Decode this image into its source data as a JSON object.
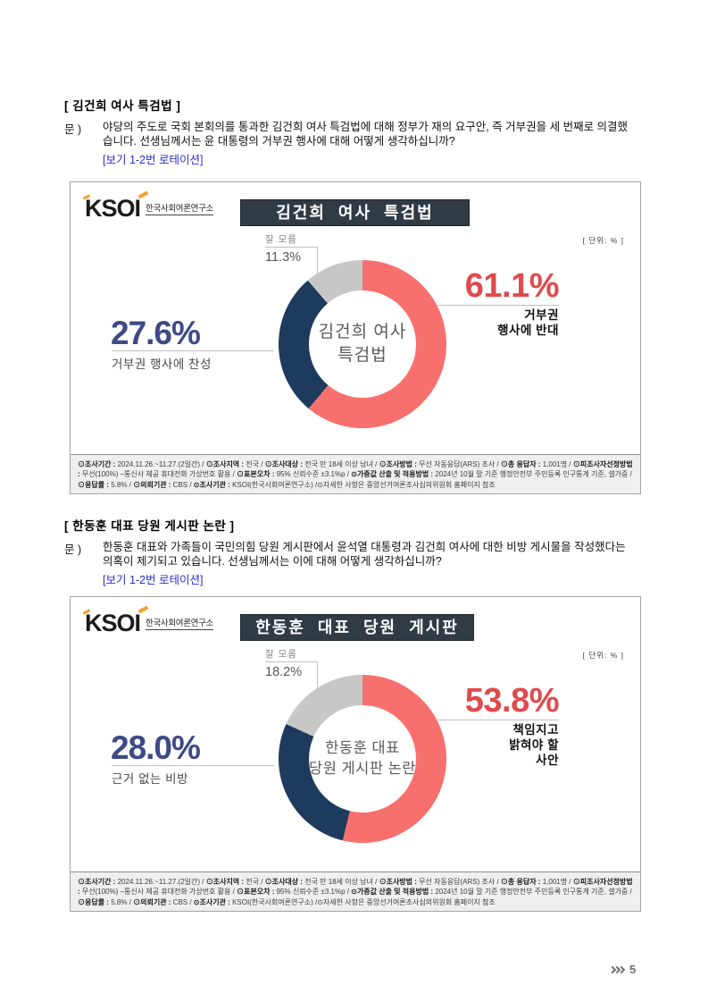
{
  "page": {
    "number": "5"
  },
  "logo": {
    "wordmark": "KSOI",
    "org": "한국사회여론연구소"
  },
  "sections": [
    {
      "heading": "[ 김건희 여사 특검법 ]",
      "q_label": "문 )",
      "question": "야당의 주도로 국회 본회의를 통과한 김건희 여사 특검법에 대해 정부가 재의 요구안, 즉 거부권을 세 번째로 의결했습니다. 선생님께서는 윤 대통령의 거부권 행사에 대해 어떻게 생각하십니까?",
      "rotation_note": "[보기 1-2번 로테이션]"
    },
    {
      "heading": "[ 한동훈 대표 당원 게시판 논란 ]",
      "q_label": "문 )",
      "question": "한동훈 대표와 가족들이 국민의힘 당원 게시판에서 윤석열 대통령과 김건희 여사에 대한 비방 게시물을 작성했다는 의혹이 제기되고 있습니다. 선생님께서는 이에 대해 어떻게 생각하십니까?",
      "rotation_note": "[보기 1-2번 로테이션]"
    }
  ],
  "chart_data": [
    {
      "type": "pie",
      "title": "김건희 여사 특검법",
      "unit_note": "[ 단위: % ]",
      "center_lines": [
        "김건희 여사",
        "특검법"
      ],
      "slices": [
        {
          "label": "거부권 행사에 반대",
          "value": 61.1,
          "color": "#F8706E"
        },
        {
          "label": "거부권 행사에 찬성",
          "value": 27.6,
          "color": "#1E3A5C"
        },
        {
          "label": "잘 모름",
          "value": 11.3,
          "color": "#C7C7C7"
        }
      ],
      "callouts": {
        "top": {
          "label": "잘 모름",
          "pct": "11.3%"
        },
        "left": {
          "pct": "27.6%",
          "label": "거부권 행사에 찬성"
        },
        "right": {
          "pct": "61.1%",
          "lines": [
            "거부권",
            "행사에 반대"
          ]
        }
      }
    },
    {
      "type": "pie",
      "title": "한동훈 대표 당원 게시판 논란",
      "unit_note": "[ 단위: % ]",
      "center_lines": [
        "한동훈 대표",
        "당원 게시판 논란"
      ],
      "slices": [
        {
          "label": "책임지고 밝혀야 할 사안",
          "value": 53.8,
          "color": "#F8706E"
        },
        {
          "label": "근거 없는 비방",
          "value": 28.0,
          "color": "#1E3A5C"
        },
        {
          "label": "잘 모름",
          "value": 18.2,
          "color": "#C7C7C7"
        }
      ],
      "callouts": {
        "top": {
          "label": "잘 모름",
          "pct": "18.2%"
        },
        "left": {
          "pct": "28.0%",
          "label": "근거 없는 비방"
        },
        "right": {
          "pct": "53.8%",
          "lines": [
            "책임지고",
            "밝혀야 할",
            "사안"
          ]
        }
      }
    }
  ],
  "survey_footnote_segments": [
    {
      "b": 1,
      "t": "⊙조사기간 : "
    },
    {
      "b": 0,
      "t": "2024.11.26.~11.27.(2일간)   / "
    },
    {
      "b": 1,
      "t": "⊙조사지역 : "
    },
    {
      "b": 0,
      "t": "전국 / "
    },
    {
      "b": 1,
      "t": "⊙조사대상 : "
    },
    {
      "b": 0,
      "t": "전국 만 18세 이상 남녀 / "
    },
    {
      "b": 1,
      "t": "⊙조사방법 : "
    },
    {
      "b": 0,
      "t": "무선 자동응답(ARS) 조사 / "
    },
    {
      "b": 1,
      "t": "⊙총 응답자 : "
    },
    {
      "b": 0,
      "t": "1,001명 / "
    },
    {
      "b": 1,
      "t": "⊙피조사자선정방법 : "
    },
    {
      "b": 0,
      "t": "무선(100%) –통신사 제공 휴대전화 가상번호 활용 / "
    },
    {
      "b": 1,
      "t": "⊙표본오차 : "
    },
    {
      "b": 0,
      "t": "95% 신뢰수준 ±3.1%p / "
    },
    {
      "b": 1,
      "t": "⊙가중값 산출 및 적용방법 : "
    },
    {
      "b": 0,
      "t": "2024년 10월 말 기준 행정안전부 주민등록 인구통계 기준, 셀가중 / "
    },
    {
      "b": 1,
      "t": "⊙응답률 : "
    },
    {
      "b": 0,
      "t": "5.8% / "
    },
    {
      "b": 1,
      "t": "⊙의뢰기관 : "
    },
    {
      "b": 0,
      "t": "CBS / "
    },
    {
      "b": 1,
      "t": "⊙조사기관 : "
    },
    {
      "b": 0,
      "t": "KSOI(한국사회여론연구소) /"
    },
    {
      "b": 0,
      "t": "⊙자세한 사항은 중앙선거여론조사심의위원회 홈페이지 참조"
    }
  ]
}
